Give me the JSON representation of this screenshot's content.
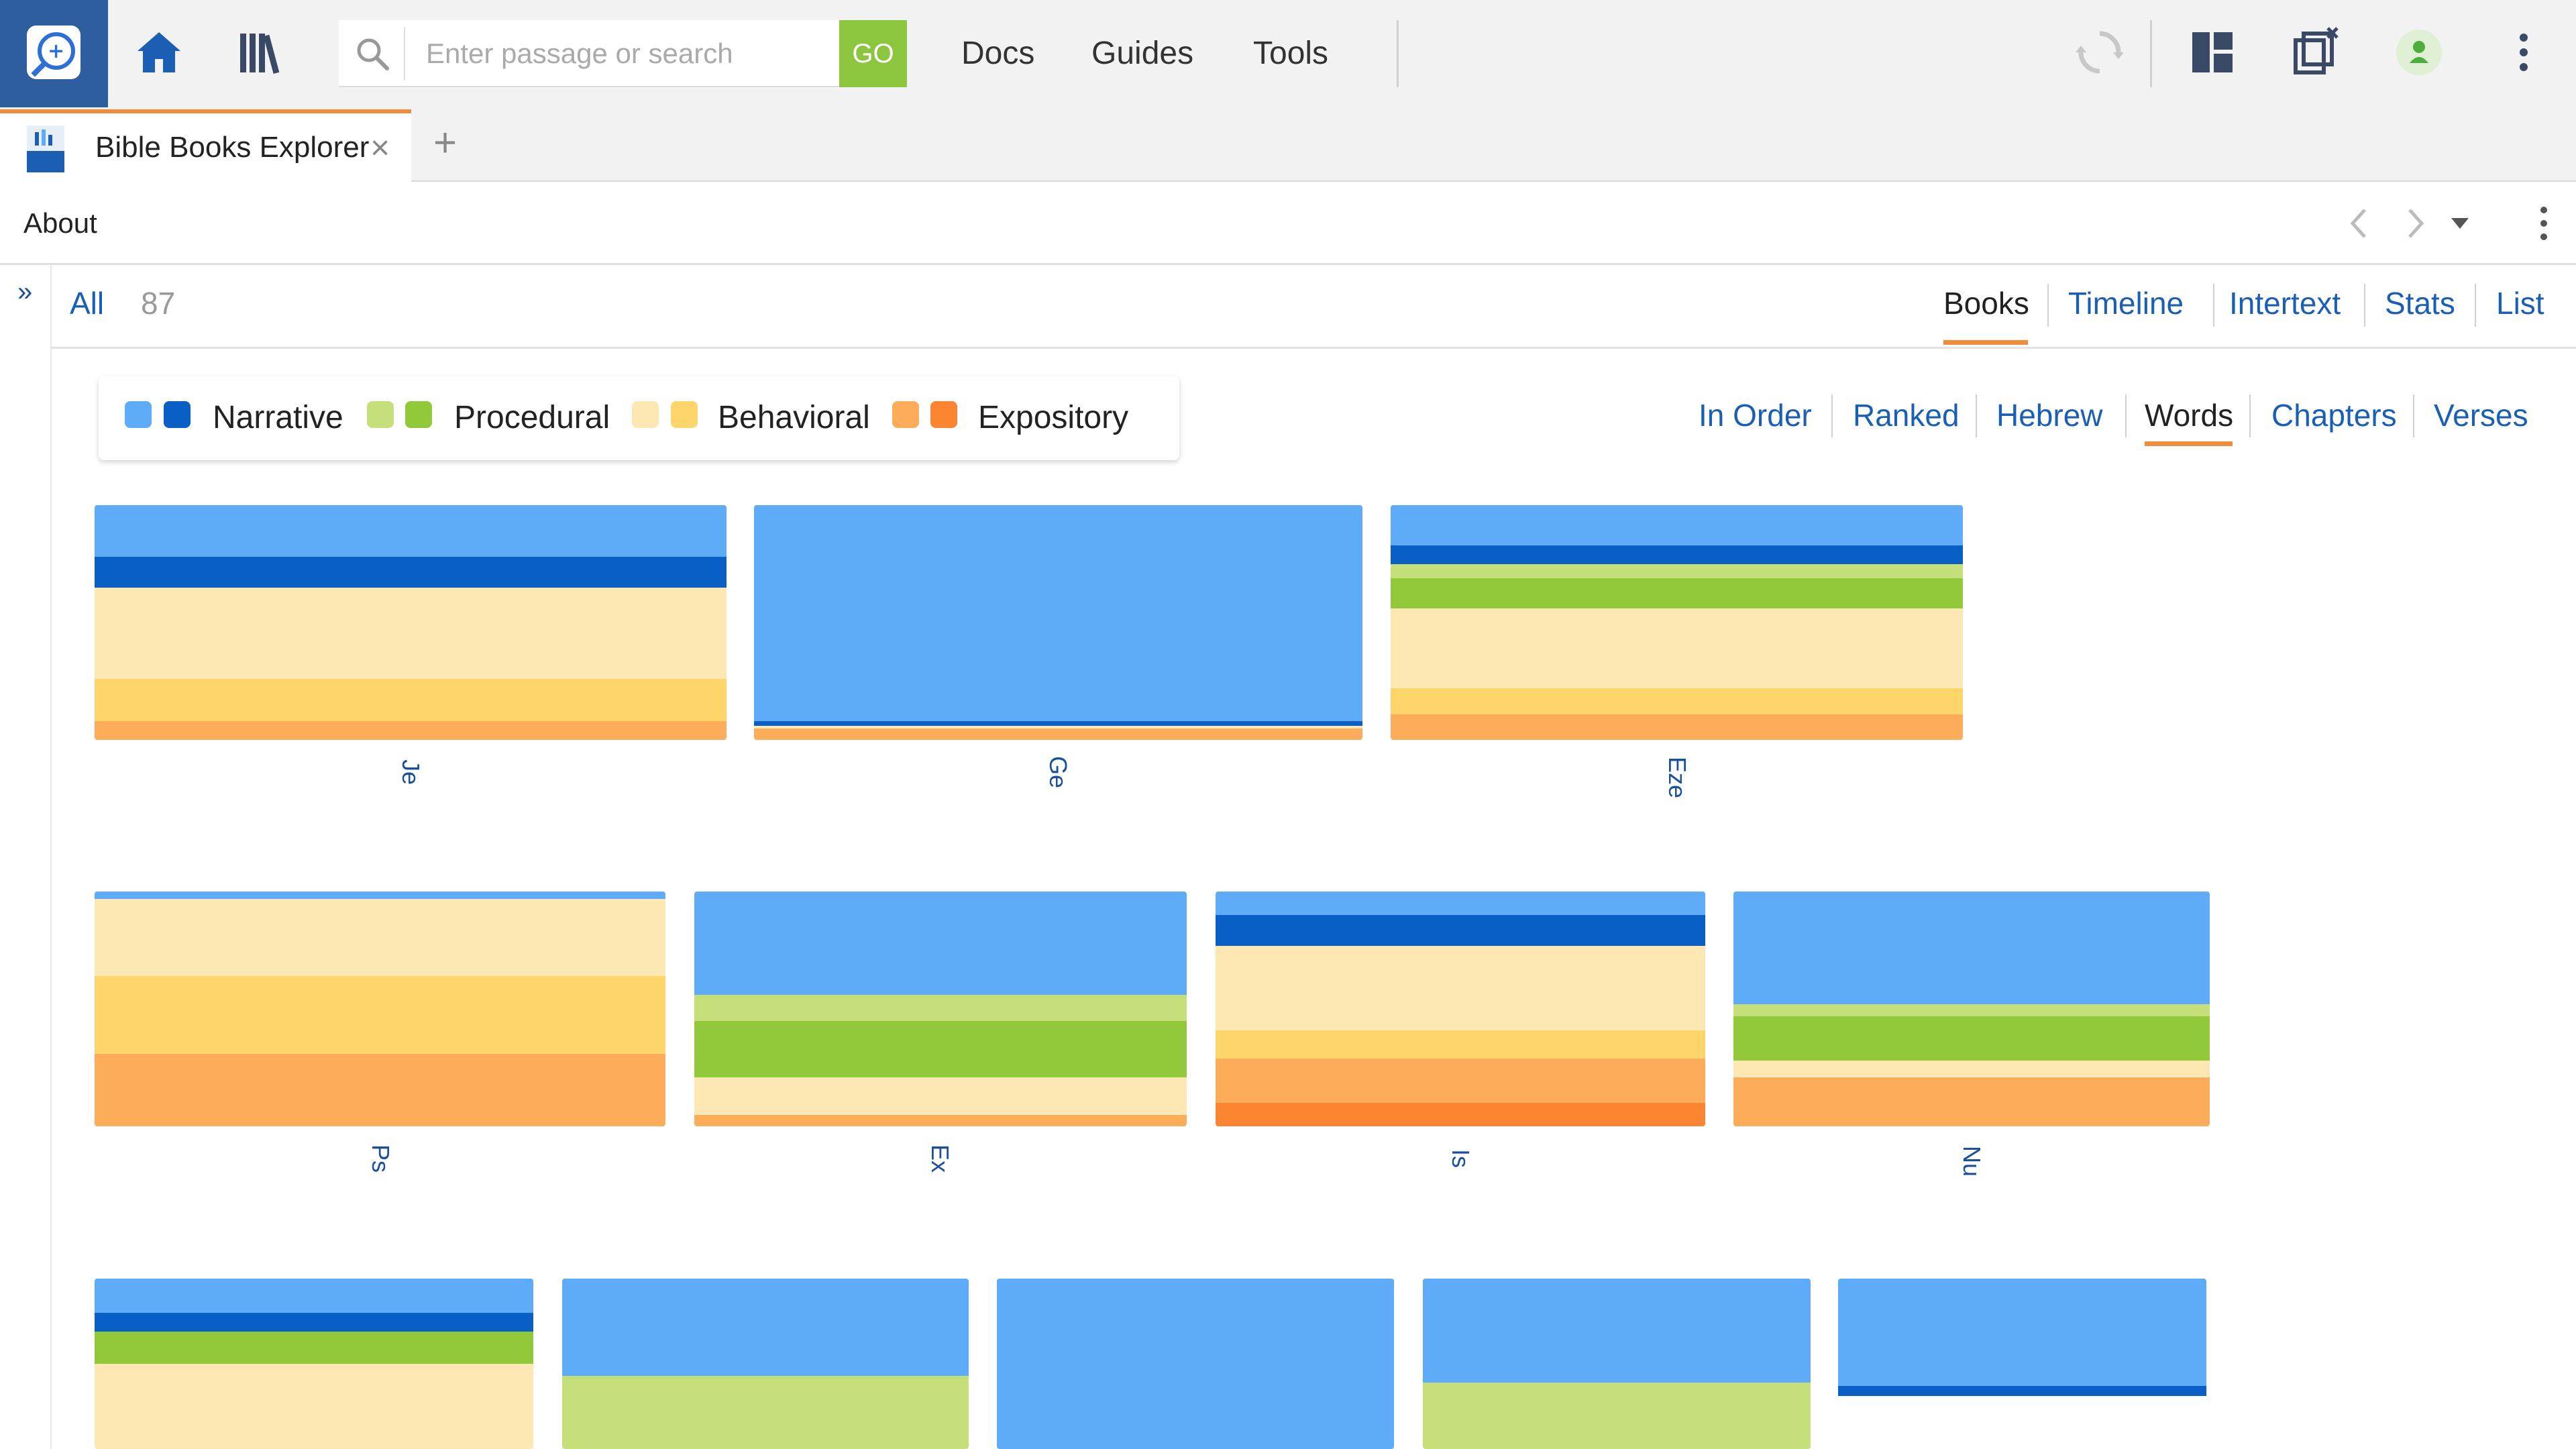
{
  "toolbar": {
    "search_placeholder": "Enter passage or search",
    "go_label": "GO",
    "menu": [
      "Docs",
      "Guides",
      "Tools"
    ]
  },
  "tab": {
    "title": "Bible Books Explorer",
    "close": "×",
    "add": "+"
  },
  "panel": {
    "title": "About"
  },
  "filter": {
    "all_label": "All",
    "count": "87",
    "tabs": [
      "Books",
      "Timeline",
      "Intertext",
      "Stats",
      "List"
    ],
    "active_tab": "Books"
  },
  "legend": {
    "items": [
      {
        "label": "Narrative",
        "light": "#5eabf8",
        "dark": "#0a5fc6"
      },
      {
        "label": "Procedural",
        "light": "#c5e07b",
        "dark": "#92c93a"
      },
      {
        "label": "Behavioral",
        "light": "#fde7b3",
        "dark": "#fdd56a"
      },
      {
        "label": "Expository",
        "light": "#fdac59",
        "dark": "#fb8530"
      }
    ]
  },
  "view_tabs": [
    "In Order",
    "Ranked",
    "Hebrew",
    "Words",
    "Chapters",
    "Verses"
  ],
  "active_view": "Words",
  "colors": {
    "accent": "#f08c3a",
    "link": "#1a5fb4",
    "go": "#8cc63f",
    "logo_bg": "#2e5e9e"
  },
  "chart_data": {
    "type": "treemap",
    "genres": [
      "Narrative",
      "Narrative (dark)",
      "Procedural",
      "Procedural (dark)",
      "Behavioral",
      "Behavioral (dark)",
      "Expository",
      "Expository (dark)"
    ],
    "books": [
      {
        "label": "Je",
        "bands": [
          [
            0.22,
            "#5eabf8"
          ],
          [
            0.13,
            "#0a5fc6"
          ],
          [
            0.39,
            "#fde7b3"
          ],
          [
            0.18,
            "#fdd56a"
          ],
          [
            0.08,
            "#fdac59"
          ]
        ]
      },
      {
        "label": "Ge",
        "bands": [
          [
            0.92,
            "#5eabf8"
          ],
          [
            0.02,
            "#0a5fc6"
          ],
          [
            0.01,
            "#fde7b3"
          ],
          [
            0.05,
            "#fdac59"
          ]
        ]
      },
      {
        "label": "Eze",
        "bands": [
          [
            0.17,
            "#5eabf8"
          ],
          [
            0.08,
            "#0a5fc6"
          ],
          [
            0.06,
            "#c5e07b"
          ],
          [
            0.13,
            "#92c93a"
          ],
          [
            0.34,
            "#fde7b3"
          ],
          [
            0.11,
            "#fdd56a"
          ],
          [
            0.11,
            "#fdac59"
          ]
        ]
      },
      {
        "label": "Ps",
        "bands": [
          [
            0.03,
            "#5eabf8"
          ],
          [
            0.33,
            "#fde7b3"
          ],
          [
            0.33,
            "#fdd56a"
          ],
          [
            0.31,
            "#fdac59"
          ]
        ]
      },
      {
        "label": "Ex",
        "bands": [
          [
            0.44,
            "#5eabf8"
          ],
          [
            0.11,
            "#c5e07b"
          ],
          [
            0.24,
            "#92c93a"
          ],
          [
            0.16,
            "#fde7b3"
          ],
          [
            0.05,
            "#fdac59"
          ]
        ]
      },
      {
        "label": "Is",
        "bands": [
          [
            0.1,
            "#5eabf8"
          ],
          [
            0.13,
            "#0a5fc6"
          ],
          [
            0.36,
            "#fde7b3"
          ],
          [
            0.12,
            "#fdd56a"
          ],
          [
            0.19,
            "#fdac59"
          ],
          [
            0.1,
            "#fb8530"
          ]
        ]
      },
      {
        "label": "Nu",
        "bands": [
          [
            0.48,
            "#5eabf8"
          ],
          [
            0.05,
            "#c5e07b"
          ],
          [
            0.19,
            "#92c93a"
          ],
          [
            0.07,
            "#fde7b3"
          ],
          [
            0.21,
            "#fdac59"
          ]
        ]
      },
      {
        "label": "",
        "bands": [
          [
            0.2,
            "#5eabf8"
          ],
          [
            0.11,
            "#0a5fc6"
          ],
          [
            0.19,
            "#92c93a"
          ],
          [
            0.5,
            "#fde7b3"
          ]
        ]
      },
      {
        "label": "",
        "bands": [
          [
            0.57,
            "#5eabf8"
          ],
          [
            0.43,
            "#c5e07b"
          ]
        ]
      },
      {
        "label": "",
        "bands": [
          [
            1.0,
            "#5eabf8"
          ]
        ]
      },
      {
        "label": "",
        "bands": [
          [
            0.61,
            "#5eabf8"
          ],
          [
            0.39,
            "#c5e07b"
          ]
        ]
      },
      {
        "label": "",
        "bands": [
          [
            0.63,
            "#5eabf8"
          ],
          [
            0.06,
            "#0a5fc6"
          ],
          [
            0.31,
            "#ffffff"
          ]
        ]
      }
    ]
  }
}
